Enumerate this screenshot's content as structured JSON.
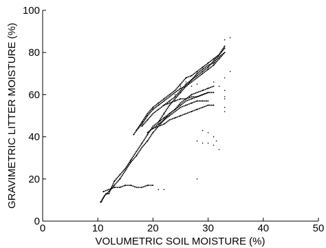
{
  "chart_data": {
    "type": "scatter",
    "title": "",
    "xlabel": "VOLUMETRIC SOIL MOISTURE (%)",
    "ylabel": "GRAVIMETRIC LITTER MOISTURE (%)",
    "xlim": [
      0,
      50
    ],
    "ylim": [
      0,
      100
    ],
    "x_ticks": [
      0,
      10,
      20,
      30,
      40,
      50
    ],
    "y_ticks": [
      0,
      20,
      40,
      60,
      80,
      100
    ],
    "x_tick_labels": [
      "0",
      "10",
      "20",
      "30",
      "40",
      "50"
    ],
    "y_tick_labels": [
      "0",
      "20",
      "40",
      "60",
      "80",
      "100"
    ],
    "grid": false,
    "colors": {
      "marks": "#000000",
      "axes": "#000000"
    },
    "series": [
      {
        "style": "dense",
        "points": [
          [
            10.5,
            9
          ],
          [
            11,
            11
          ],
          [
            11.5,
            13
          ],
          [
            12,
            13
          ],
          [
            12.5,
            16
          ],
          [
            13,
            19
          ],
          [
            14,
            22
          ],
          [
            15,
            25
          ],
          [
            16,
            29
          ],
          [
            17,
            33
          ],
          [
            18,
            37
          ],
          [
            19,
            41
          ],
          [
            20,
            45
          ],
          [
            21,
            47
          ],
          [
            22,
            51
          ],
          [
            23,
            55
          ],
          [
            24,
            58
          ],
          [
            25,
            61
          ],
          [
            26,
            64
          ],
          [
            27,
            67
          ],
          [
            28,
            69
          ],
          [
            29,
            71
          ],
          [
            30,
            73
          ],
          [
            31,
            76
          ],
          [
            32,
            79
          ],
          [
            33,
            83
          ]
        ]
      },
      {
        "style": "dense",
        "points": [
          [
            10.6,
            9
          ],
          [
            11.2,
            12
          ],
          [
            12,
            14
          ],
          [
            13,
            17
          ],
          [
            14,
            20
          ],
          [
            15,
            24
          ],
          [
            16,
            28
          ],
          [
            17,
            31
          ],
          [
            18,
            35
          ],
          [
            19,
            38
          ],
          [
            20,
            42
          ],
          [
            21,
            45
          ],
          [
            22,
            48
          ],
          [
            23,
            51
          ],
          [
            24,
            53
          ],
          [
            25,
            56
          ],
          [
            26,
            58
          ],
          [
            27,
            60
          ],
          [
            28,
            61
          ],
          [
            29,
            62
          ],
          [
            30,
            63
          ],
          [
            31,
            64
          ]
        ]
      },
      {
        "style": "dense",
        "points": [
          [
            16.5,
            41
          ],
          [
            17,
            43
          ],
          [
            18,
            46
          ],
          [
            19,
            50
          ],
          [
            20,
            53
          ],
          [
            21,
            55
          ],
          [
            22,
            57
          ],
          [
            23,
            59
          ],
          [
            24,
            61
          ],
          [
            25,
            63
          ],
          [
            26,
            64
          ],
          [
            27,
            66
          ],
          [
            28,
            68
          ],
          [
            29,
            70
          ],
          [
            30,
            72
          ],
          [
            31,
            74
          ],
          [
            32,
            77
          ],
          [
            33,
            80
          ]
        ]
      },
      {
        "style": "dense",
        "points": [
          [
            17,
            43
          ],
          [
            18,
            47
          ],
          [
            19,
            51
          ],
          [
            20,
            54
          ],
          [
            21,
            56
          ],
          [
            22,
            58
          ],
          [
            23,
            60
          ],
          [
            24,
            62
          ],
          [
            25,
            65
          ],
          [
            26,
            68
          ],
          [
            27,
            69
          ],
          [
            28,
            71
          ],
          [
            29,
            73
          ],
          [
            30,
            75
          ],
          [
            31,
            77
          ],
          [
            32,
            79
          ],
          [
            33,
            82
          ]
        ]
      },
      {
        "style": "dense",
        "points": [
          [
            18,
            45
          ],
          [
            19,
            48
          ],
          [
            20,
            51
          ],
          [
            21,
            53
          ],
          [
            22,
            55
          ],
          [
            23,
            56
          ],
          [
            24,
            57
          ],
          [
            25,
            58
          ],
          [
            26,
            58
          ],
          [
            27,
            59
          ],
          [
            28,
            59
          ],
          [
            29,
            60
          ],
          [
            30,
            61
          ]
        ]
      },
      {
        "style": "dense",
        "points": [
          [
            19,
            42
          ],
          [
            20,
            44
          ],
          [
            21,
            46
          ],
          [
            22,
            48
          ],
          [
            23,
            50
          ],
          [
            24,
            52
          ],
          [
            25,
            54
          ],
          [
            26,
            55
          ],
          [
            27,
            56
          ],
          [
            28,
            57
          ],
          [
            29,
            57
          ],
          [
            30,
            57
          ]
        ]
      },
      {
        "style": "dense",
        "points": [
          [
            20,
            44
          ],
          [
            21,
            45
          ],
          [
            22,
            46
          ],
          [
            23,
            48
          ],
          [
            24,
            49
          ],
          [
            25,
            50
          ],
          [
            26,
            51
          ],
          [
            27,
            52
          ],
          [
            28,
            53
          ],
          [
            29,
            54
          ],
          [
            30,
            55
          ],
          [
            31,
            55
          ]
        ]
      },
      {
        "style": "dense",
        "points": [
          [
            21,
            47
          ],
          [
            22,
            49
          ],
          [
            23,
            51
          ],
          [
            24,
            53
          ],
          [
            25,
            55
          ],
          [
            26,
            57
          ],
          [
            27,
            58
          ],
          [
            28,
            59
          ],
          [
            29,
            60
          ],
          [
            30,
            61
          ],
          [
            31,
            61
          ]
        ]
      },
      {
        "style": "dense",
        "points": [
          [
            22,
            55
          ],
          [
            23,
            57
          ],
          [
            24,
            59
          ],
          [
            25,
            62
          ],
          [
            26,
            65
          ],
          [
            27,
            67
          ],
          [
            28,
            70
          ],
          [
            29,
            72
          ],
          [
            30,
            74
          ],
          [
            31,
            75
          ],
          [
            32,
            78
          ],
          [
            33,
            80
          ]
        ]
      },
      {
        "style": "dense",
        "points": [
          [
            11,
            14
          ],
          [
            12,
            15
          ],
          [
            13,
            16
          ],
          [
            14,
            16
          ],
          [
            15,
            17
          ],
          [
            16,
            17
          ],
          [
            17,
            16
          ],
          [
            18,
            16
          ],
          [
            19,
            17
          ],
          [
            20,
            17
          ]
        ]
      },
      {
        "style": "sparse",
        "points": [
          [
            21,
            15
          ],
          [
            22,
            15
          ],
          [
            24,
            60
          ],
          [
            25,
            64
          ],
          [
            26,
            66
          ],
          [
            27,
            64
          ],
          [
            28,
            65
          ],
          [
            29,
            62
          ],
          [
            29,
            43
          ],
          [
            30,
            42
          ],
          [
            31,
            40
          ],
          [
            31.5,
            38
          ],
          [
            28,
            38
          ],
          [
            29,
            37
          ],
          [
            30,
            37
          ],
          [
            31,
            36
          ],
          [
            32,
            34
          ],
          [
            33,
            54
          ],
          [
            33,
            59
          ],
          [
            33,
            62
          ],
          [
            33,
            68
          ],
          [
            34,
            71
          ],
          [
            33,
            86
          ],
          [
            34,
            87
          ],
          [
            28,
            20
          ],
          [
            31,
            66
          ],
          [
            32,
            64
          ],
          [
            33,
            58
          ],
          [
            33,
            52
          ]
        ]
      }
    ]
  }
}
